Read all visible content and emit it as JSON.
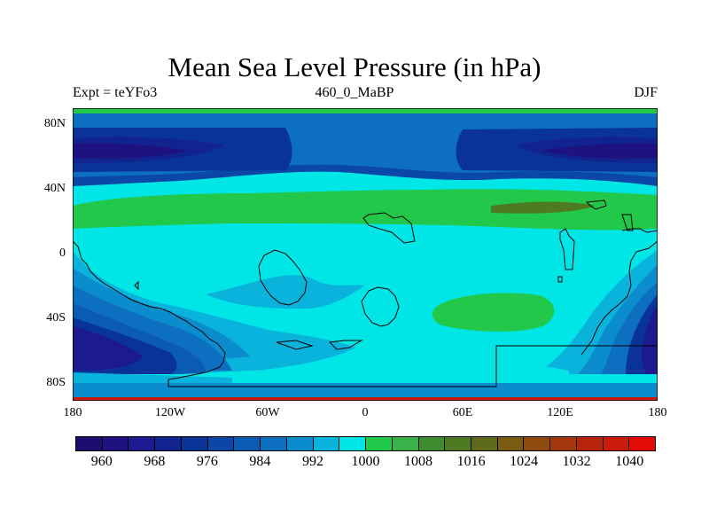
{
  "header": {
    "title": "Mean Sea Level Pressure (in hPa)",
    "left": "Expt = teYFo3",
    "center": "460_0_MaBP",
    "right": "DJF"
  },
  "axes": {
    "y_ticks": [
      "80N",
      "40N",
      "0",
      "40S",
      "80S"
    ],
    "x_ticks": [
      "180",
      "120W",
      "60W",
      "0",
      "60E",
      "120E",
      "180"
    ]
  },
  "colors": {
    "c956": "#1a0d6e",
    "c960": "#1d1280",
    "c964": "#1d1a8f",
    "c968": "#10238f",
    "c972": "#0a3397",
    "c976": "#0a47a6",
    "c980": "#0b5ab4",
    "c984": "#0d6fbf",
    "c988": "#0b8ccd",
    "c992": "#09b3dc",
    "c996": "#00e6e6",
    "c1000": "#22c84a",
    "c1004": "#39b24a",
    "c1008": "#3f8c2f",
    "c1012": "#4f7a24",
    "c1016": "#5e6a1a",
    "c1020": "#7a5b12",
    "c1024": "#8f4a10",
    "c1028": "#a3360d",
    "c1032": "#b8240b",
    "c1036": "#cc1a0a",
    "c1040": "#e30c05"
  },
  "colorbar": {
    "swatches": [
      "#1a0d6e",
      "#1d1280",
      "#1d1a8f",
      "#10238f",
      "#0a3397",
      "#0a47a6",
      "#0b5ab4",
      "#0d6fbf",
      "#0b8ccd",
      "#09b3dc",
      "#00e6e6",
      "#22c84a",
      "#39b24a",
      "#3f8c2f",
      "#4f7a24",
      "#5e6a1a",
      "#7a5b12",
      "#8f4a10",
      "#a3360d",
      "#b8240b",
      "#cc1a0a",
      "#e30c05"
    ],
    "labels": [
      "960",
      "968",
      "976",
      "984",
      "992",
      "1000",
      "1008",
      "1016",
      "1024",
      "1032",
      "1040"
    ]
  }
}
